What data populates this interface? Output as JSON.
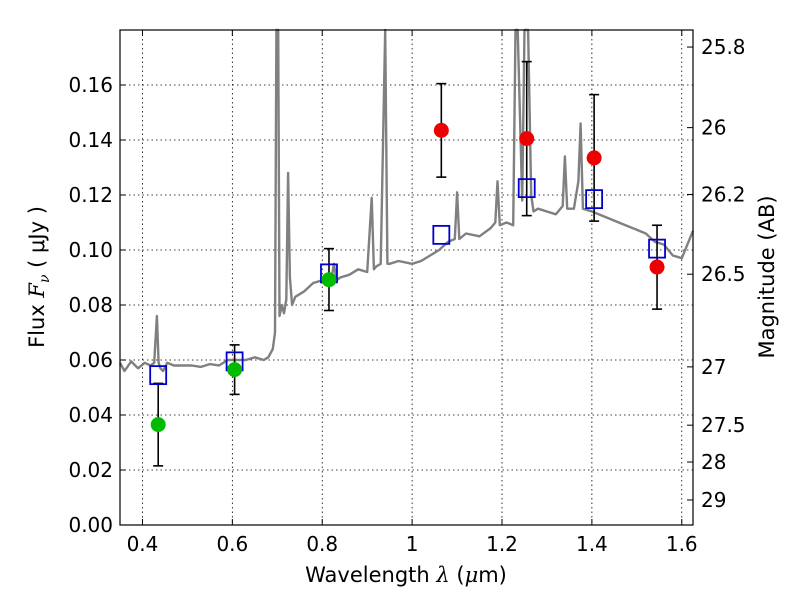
{
  "chart_data": {
    "type": "scatter",
    "title": "",
    "xlabel": {
      "pre": "Wavelength ",
      "sym": "λ",
      "open": " (",
      "mu": "μ",
      "unit": "m)"
    },
    "ylabel": {
      "pre": "Flux ",
      "sym": "F",
      "sub": "ν",
      "unit": " ( μJy )"
    },
    "y2label": "Magnitude (AB)",
    "xlim": [
      0.35,
      1.625
    ],
    "ylim": [
      0.0,
      0.18
    ],
    "x_ticks": [
      0.4,
      0.6,
      0.8,
      1.0,
      1.2,
      1.4,
      1.6
    ],
    "x_tick_labels": [
      "0.4",
      "0.6",
      "0.8",
      "1",
      "1.2",
      "1.4",
      "1.6"
    ],
    "y_ticks": [
      0.0,
      0.02,
      0.04,
      0.06,
      0.08,
      0.1,
      0.12,
      0.14,
      0.16
    ],
    "y_tick_labels": [
      "0.00",
      "0.02",
      "0.04",
      "0.06",
      "0.08",
      "0.10",
      "0.12",
      "0.14",
      "0.16"
    ],
    "y2_ticks": [
      {
        "label": "25.8",
        "flux": 0.1738
      },
      {
        "label": "26",
        "flux": 0.1445
      },
      {
        "label": "26.2",
        "flux": 0.1202
      },
      {
        "label": "26.5",
        "flux": 0.0912
      },
      {
        "label": "27",
        "flux": 0.0575
      },
      {
        "label": "27.5",
        "flux": 0.0363
      },
      {
        "label": "28",
        "flux": 0.0229
      },
      {
        "label": "29",
        "flux": 0.0091
      }
    ],
    "grid": true,
    "colors": {
      "spectrum": "#808080",
      "model": "#0000cc",
      "detection_green": "#00bb00",
      "detection_red": "#ee0000",
      "errorbar": "#000000"
    },
    "series": [
      {
        "kind": "model",
        "marker": "open-square",
        "x": [
          0.435,
          0.605,
          0.815,
          1.065,
          1.255,
          1.405,
          1.545
        ],
        "y": [
          0.0545,
          0.0595,
          0.0915,
          0.1055,
          0.1225,
          0.1185,
          0.1005
        ]
      },
      {
        "kind": "observed-green",
        "marker": "circle",
        "x": [
          0.435,
          0.605,
          0.815
        ],
        "y": [
          0.0365,
          0.0565,
          0.0892
        ],
        "yerr_low": [
          0.0215,
          0.0475,
          0.078
        ],
        "yerr_high": [
          0.0515,
          0.0655,
          0.1005
        ]
      },
      {
        "kind": "observed-red",
        "marker": "circle",
        "x": [
          1.065,
          1.255,
          1.405,
          1.545
        ],
        "y": [
          0.1435,
          0.1405,
          0.1335,
          0.0938
        ],
        "yerr_low": [
          0.1265,
          0.1125,
          0.1105,
          0.0785
        ],
        "yerr_high": [
          0.1605,
          0.1685,
          0.1565,
          0.109
        ]
      },
      {
        "kind": "spectrum",
        "x": [
          0.35,
          0.36,
          0.375,
          0.39,
          0.405,
          0.418,
          0.426,
          0.432,
          0.436,
          0.44,
          0.446,
          0.455,
          0.47,
          0.49,
          0.51,
          0.53,
          0.55,
          0.57,
          0.59,
          0.61,
          0.63,
          0.65,
          0.67,
          0.68,
          0.69,
          0.695,
          0.698,
          0.702,
          0.705,
          0.71,
          0.715,
          0.72,
          0.724,
          0.728,
          0.733,
          0.74,
          0.76,
          0.78,
          0.8,
          0.82,
          0.826,
          0.832,
          0.84,
          0.86,
          0.88,
          0.9,
          0.91,
          0.915,
          0.92,
          0.93,
          0.94,
          0.945,
          0.95,
          0.97,
          1.0,
          1.02,
          1.04,
          1.06,
          1.08,
          1.095,
          1.1,
          1.105,
          1.12,
          1.15,
          1.175,
          1.185,
          1.19,
          1.195,
          1.21,
          1.225,
          1.23,
          1.235,
          1.245,
          1.25,
          1.258,
          1.265,
          1.27,
          1.28,
          1.3,
          1.32,
          1.335,
          1.34,
          1.345,
          1.36,
          1.37,
          1.375,
          1.38,
          1.4,
          1.43,
          1.46,
          1.49,
          1.52,
          1.54,
          1.56,
          1.58,
          1.6,
          1.625
        ],
        "y": [
          0.059,
          0.056,
          0.0595,
          0.057,
          0.059,
          0.058,
          0.059,
          0.076,
          0.059,
          0.057,
          0.056,
          0.059,
          0.058,
          0.058,
          0.058,
          0.0575,
          0.0585,
          0.058,
          0.06,
          0.06,
          0.06,
          0.061,
          0.06,
          0.061,
          0.064,
          0.07,
          0.18,
          0.18,
          0.076,
          0.08,
          0.077,
          0.082,
          0.128,
          0.09,
          0.08,
          0.083,
          0.085,
          0.088,
          0.089,
          0.089,
          0.095,
          0.089,
          0.09,
          0.091,
          0.093,
          0.092,
          0.119,
          0.093,
          0.094,
          0.095,
          0.18,
          0.095,
          0.095,
          0.096,
          0.095,
          0.096,
          0.098,
          0.1,
          0.103,
          0.104,
          0.121,
          0.104,
          0.106,
          0.105,
          0.108,
          0.11,
          0.125,
          0.109,
          0.11,
          0.109,
          0.18,
          0.18,
          0.118,
          0.18,
          0.18,
          0.12,
          0.114,
          0.115,
          0.114,
          0.113,
          0.116,
          0.134,
          0.115,
          0.115,
          0.125,
          0.146,
          0.115,
          0.114,
          0.112,
          0.11,
          0.108,
          0.106,
          0.103,
          0.102,
          0.098,
          0.097,
          0.107
        ]
      }
    ]
  }
}
